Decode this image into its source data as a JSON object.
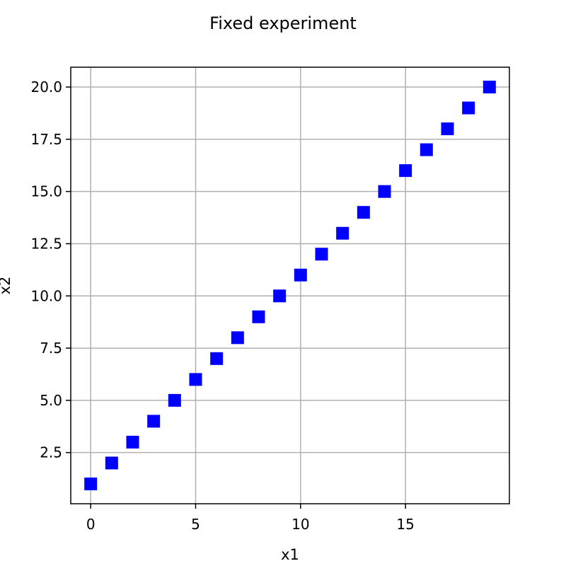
{
  "chart_data": {
    "type": "scatter",
    "title": "Fixed experiment",
    "xlabel": "x1",
    "ylabel": "x2",
    "xlim": [
      -0.95,
      19.95
    ],
    "ylim": [
      0.05,
      20.95
    ],
    "xticks": [
      0,
      5,
      10,
      15
    ],
    "xtick_labels": [
      "0",
      "5",
      "10",
      "15"
    ],
    "yticks": [
      2.5,
      5.0,
      7.5,
      10.0,
      12.5,
      15.0,
      17.5,
      20.0
    ],
    "ytick_labels": [
      "2.5",
      "5.0",
      "7.5",
      "10.0",
      "12.5",
      "15.0",
      "17.5",
      "20.0"
    ],
    "grid": true,
    "marker": "square",
    "color": "#0000ff",
    "x": [
      0,
      1,
      2,
      3,
      4,
      5,
      6,
      7,
      8,
      9,
      10,
      11,
      12,
      13,
      14,
      15,
      16,
      17,
      18,
      19
    ],
    "y": [
      1,
      2,
      3,
      4,
      5,
      6,
      7,
      8,
      9,
      10,
      11,
      12,
      13,
      14,
      15,
      16,
      17,
      18,
      19,
      20
    ]
  }
}
